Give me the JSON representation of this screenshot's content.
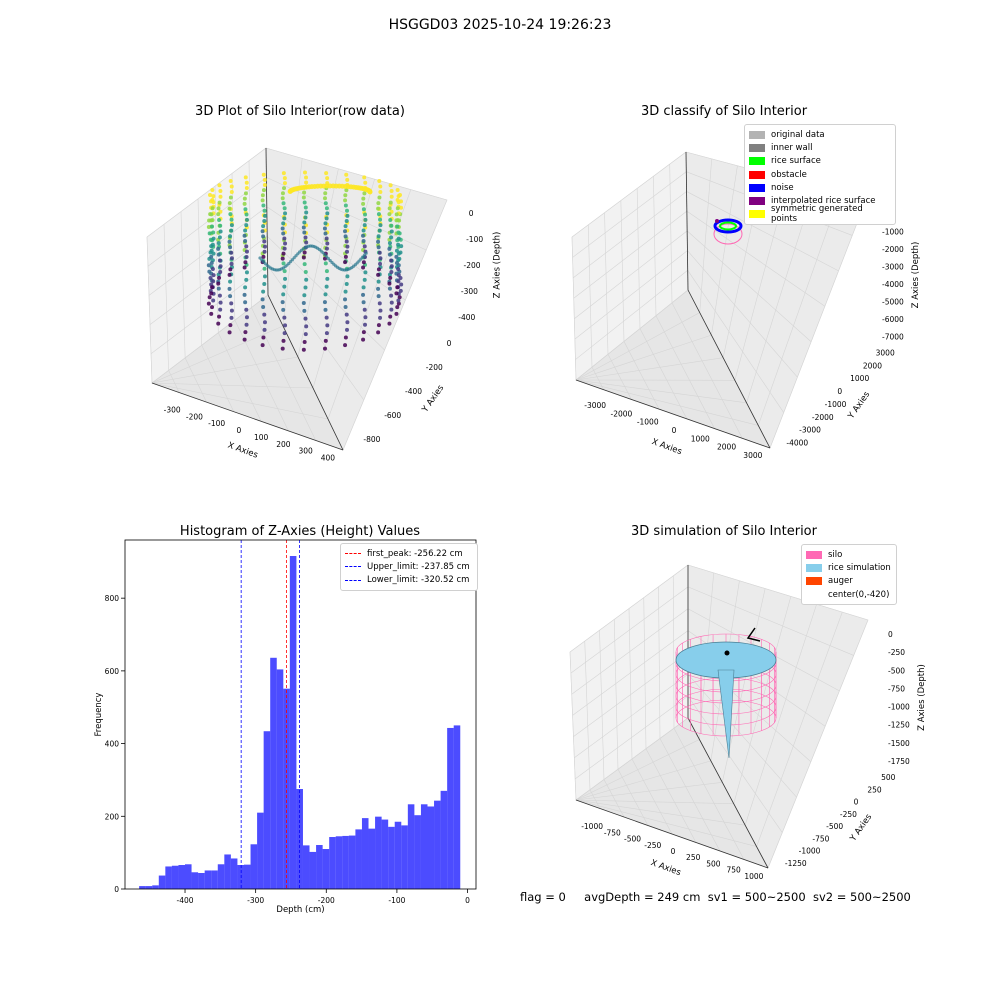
{
  "suptitle": "HSGGD03 2025-10-24 19:26:23",
  "panels": {
    "raw": {
      "title": "3D Plot of Silo Interior(row data)",
      "xlabel": "X Axies",
      "ylabel": "Y Axies",
      "zlabel": "Z Axies (Depth)",
      "xticks": [
        "-300",
        "-200",
        "-100",
        "0",
        "100",
        "200",
        "300",
        "400"
      ],
      "yticks": [
        "0",
        "-200",
        "-400",
        "-600",
        "-800"
      ],
      "zticks": [
        "0",
        "-100",
        "-200",
        "-300",
        "-400"
      ]
    },
    "classify": {
      "title": "3D classify of Silo Interior",
      "xlabel": "X Axies",
      "ylabel": "Y Axies",
      "zlabel": "Z Axies (Depth)",
      "xticks": [
        "-3000",
        "-2000",
        "-1000",
        "0",
        "1000",
        "2000",
        "3000"
      ],
      "yticks": [
        "3000",
        "2000",
        "1000",
        "0",
        "-1000",
        "-2000",
        "-3000",
        "-4000"
      ],
      "zticks": [
        "0",
        "-1000",
        "-2000",
        "-3000",
        "-4000",
        "-5000",
        "-6000",
        "-7000"
      ],
      "legend": [
        {
          "label": "original data",
          "color": "#b3b3b3"
        },
        {
          "label": "inner wall",
          "color": "#808080"
        },
        {
          "label": "rice surface",
          "color": "#00ff00"
        },
        {
          "label": "obstacle",
          "color": "#ff0000"
        },
        {
          "label": "noise",
          "color": "#0000ff"
        },
        {
          "label": "interpolated rice surface",
          "color": "#800080"
        },
        {
          "label": "symmetric generated points",
          "color": "#ffff00"
        }
      ]
    },
    "histogram": {
      "title": "Histogram of Z-Axies (Height) Values",
      "xlabel": "Depth (cm)",
      "ylabel": "Frequency",
      "legend": [
        {
          "label": "first_peak: -256.22 cm",
          "color": "#ff0000"
        },
        {
          "label": "Upper_limit: -237.85 cm",
          "color": "#0000ff"
        },
        {
          "label": "Lower_limit: -320.52 cm",
          "color": "#0000ff"
        }
      ]
    },
    "simulation": {
      "title": "3D simulation of Silo Interior",
      "xlabel": "X Axies",
      "ylabel": "Y Axies",
      "zlabel": "Z Axies (Depth)",
      "xticks": [
        "-1000",
        "-750",
        "-500",
        "-250",
        "0",
        "250",
        "500",
        "750",
        "1000"
      ],
      "yticks": [
        "500",
        "250",
        "0",
        "-250",
        "-500",
        "-750",
        "-1000",
        "-1250"
      ],
      "zticks": [
        "0",
        "-250",
        "-500",
        "-750",
        "-1000",
        "-1250",
        "-1500",
        "-1750"
      ],
      "legend": [
        {
          "label": "silo",
          "color": "#ff69b4"
        },
        {
          "label": "rice simulation",
          "color": "#87ceeb"
        },
        {
          "label": "auger",
          "color": "#ff4500"
        },
        {
          "label": "center(0,-420)",
          "color": ""
        }
      ]
    }
  },
  "footer": {
    "flag": "flag = 0",
    "avg": "avgDepth = 249 cm",
    "sv1": "sv1 = 500~2500",
    "sv2": "sv2 = 500~2500"
  },
  "chart_data": [
    {
      "type": "bar",
      "title": "Histogram of Z-Axies (Height) Values",
      "xlabel": "Depth (cm)",
      "ylabel": "Frequency",
      "xlim": [
        -485,
        12
      ],
      "ylim": [
        0,
        960
      ],
      "xticks": [
        -400,
        -300,
        -200,
        -100,
        0
      ],
      "yticks": [
        0,
        200,
        400,
        600,
        800
      ],
      "bin_width": 9.28,
      "bin_start": -465,
      "color": "#0000ff",
      "values": [
        8,
        8,
        10,
        37,
        62,
        64,
        66,
        68,
        46,
        44,
        51,
        51,
        68,
        95,
        84,
        66,
        67,
        123,
        210,
        434,
        636,
        604,
        551,
        916,
        275,
        120,
        102,
        121,
        110,
        143,
        145,
        146,
        147,
        164,
        195,
        166,
        199,
        191,
        171,
        185,
        175,
        233,
        203,
        233,
        227,
        243,
        270,
        443,
        450
      ],
      "vlines": [
        {
          "x": -256.22,
          "color": "#ff0000",
          "label": "first_peak: -256.22 cm"
        },
        {
          "x": -237.85,
          "color": "#0000ff",
          "label": "Upper_limit: -237.85 cm"
        },
        {
          "x": -320.52,
          "color": "#0000ff",
          "label": "Lower_limit: -320.52 cm"
        }
      ],
      "legend_position": "top-right"
    }
  ]
}
